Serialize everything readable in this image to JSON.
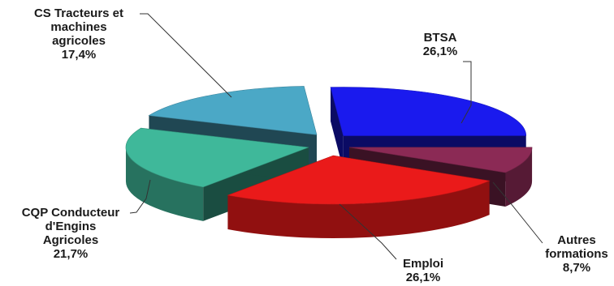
{
  "chart_data": {
    "type": "pie",
    "style": "3d-exploded",
    "slices": [
      {
        "label_lines": [
          "BTSA"
        ],
        "value_text": "26,1%",
        "value": 26.1,
        "color": "#1a1aee"
      },
      {
        "label_lines": [
          "Autres",
          "formations"
        ],
        "value_text": "8,7%",
        "value": 8.7,
        "color": "#8b2a55"
      },
      {
        "label_lines": [
          "Emploi"
        ],
        "value_text": "26,1%",
        "value": 26.1,
        "color": "#ea1a1a"
      },
      {
        "label_lines": [
          "CQP Conducteur",
          "d'Engins",
          "Agricoles"
        ],
        "value_text": "21,7%",
        "value": 21.7,
        "color": "#3fb89a"
      },
      {
        "label_lines": [
          "CS Tracteurs et",
          "machines",
          "agricoles"
        ],
        "value_text": "17,4%",
        "value": 17.4,
        "color": "#4ba8c6"
      }
    ]
  }
}
